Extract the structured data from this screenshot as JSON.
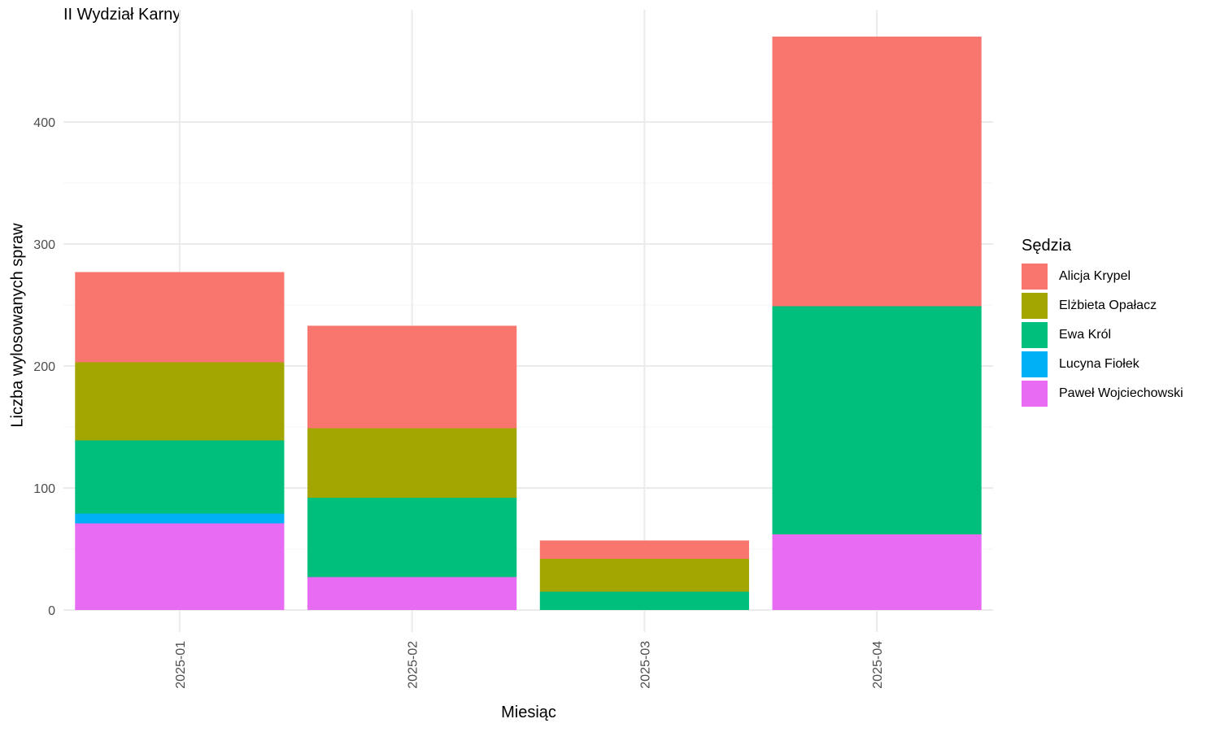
{
  "chart_data": {
    "type": "bar",
    "stacked": true,
    "title": "II Wydział Karny",
    "xlabel": "Miesiąc",
    "ylabel": "Liczba wylosowanych spraw",
    "categories": [
      "2025-01",
      "2025-02",
      "2025-03",
      "2025-04"
    ],
    "yticks": [
      0,
      100,
      200,
      300,
      400
    ],
    "ylim": [
      -18,
      492
    ],
    "grid": true,
    "legend_position": "right",
    "legend_title": "Sędzia",
    "series": [
      {
        "name": "Paweł Wojciechowski",
        "color": "#E76BF3",
        "values": [
          71,
          27,
          0,
          62
        ]
      },
      {
        "name": "Lucyna Fiołek",
        "color": "#00B0F6",
        "values": [
          8,
          0,
          0,
          0
        ]
      },
      {
        "name": "Ewa Król",
        "color": "#00BF7D",
        "values": [
          60,
          65,
          15,
          187
        ]
      },
      {
        "name": "Elżbieta Opałacz",
        "color": "#A3A500",
        "values": [
          64,
          57,
          27,
          0
        ]
      },
      {
        "name": "Alicja Krypel",
        "color": "#F8766D",
        "values": [
          74,
          84,
          15,
          221
        ]
      }
    ],
    "legend_order": [
      "Alicja Krypel",
      "Elżbieta Opałacz",
      "Ewa Król",
      "Lucyna Fiołek",
      "Paweł Wojciechowski"
    ]
  }
}
